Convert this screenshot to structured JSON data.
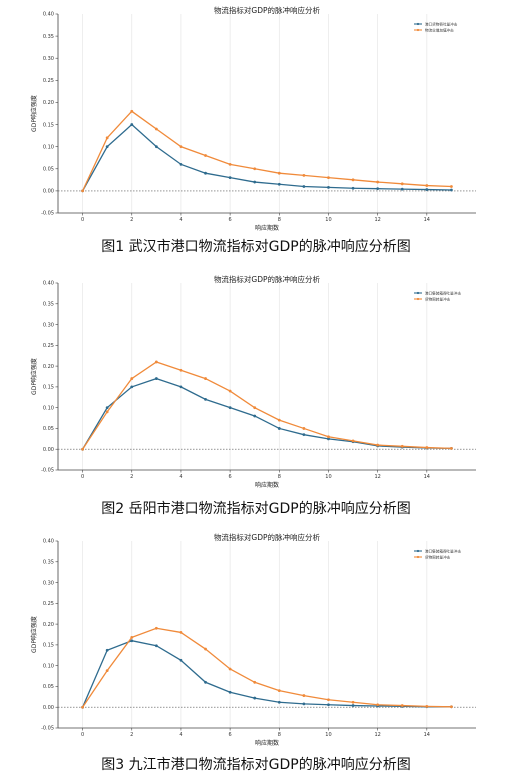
{
  "colors": {
    "s1": "#2e6b8e",
    "s2": "#f08a3a",
    "grid": "#e6e6e6",
    "axis": "#444444",
    "zero": "#555555"
  },
  "chart_data": [
    {
      "type": "line",
      "title": "物流指标对GDP的脉冲响应分析",
      "caption": "图1  武汉市港口物流指标对GDP的脉冲响应分析图",
      "xlabel": "响应期数",
      "ylabel": "GDP响应强度",
      "xlim": [
        -1,
        16
      ],
      "ylim": [
        -0.05,
        0.4
      ],
      "xticks": [
        0,
        2,
        4,
        6,
        8,
        10,
        12,
        14
      ],
      "yticks": [
        -0.05,
        0.0,
        0.05,
        0.1,
        0.15,
        0.2,
        0.25,
        0.3,
        0.35,
        0.4
      ],
      "legend_position": "top-right",
      "grid": true,
      "x": [
        0,
        1,
        2,
        3,
        4,
        5,
        6,
        7,
        8,
        9,
        10,
        11,
        12,
        13,
        14,
        15
      ],
      "series": [
        {
          "name": "港口货物吞吐量冲击",
          "values": [
            0.0,
            0.1,
            0.15,
            0.1,
            0.06,
            0.04,
            0.03,
            0.02,
            0.015,
            0.01,
            0.008,
            0.006,
            0.005,
            0.004,
            0.003,
            0.002
          ]
        },
        {
          "name": "物流业增加值冲击",
          "values": [
            0.0,
            0.12,
            0.18,
            0.14,
            0.1,
            0.08,
            0.06,
            0.05,
            0.04,
            0.035,
            0.03,
            0.025,
            0.02,
            0.016,
            0.012,
            0.01
          ]
        }
      ]
    },
    {
      "type": "line",
      "title": "物流指标对GDP的脉冲响应分析",
      "caption": "图2  岳阳市港口物流指标对GDP的脉冲响应分析图",
      "xlabel": "响应期数",
      "ylabel": "GDP响应强度",
      "xlim": [
        -1,
        16
      ],
      "ylim": [
        -0.05,
        0.4
      ],
      "xticks": [
        0,
        2,
        4,
        6,
        8,
        10,
        12,
        14
      ],
      "yticks": [
        -0.05,
        0.0,
        0.05,
        0.1,
        0.15,
        0.2,
        0.25,
        0.3,
        0.35,
        0.4
      ],
      "legend_position": "top-right",
      "grid": true,
      "x": [
        0,
        1,
        2,
        3,
        4,
        5,
        6,
        7,
        8,
        9,
        10,
        11,
        12,
        13,
        14,
        15
      ],
      "series": [
        {
          "name": "港口集装箱吞吐量冲击",
          "values": [
            0.0,
            0.1,
            0.15,
            0.17,
            0.15,
            0.12,
            0.1,
            0.08,
            0.05,
            0.035,
            0.025,
            0.018,
            0.008,
            0.005,
            0.003,
            0.002
          ]
        },
        {
          "name": "货物周转量冲击",
          "values": [
            0.0,
            0.09,
            0.17,
            0.21,
            0.19,
            0.17,
            0.14,
            0.1,
            0.07,
            0.05,
            0.03,
            0.02,
            0.01,
            0.007,
            0.004,
            0.002
          ]
        }
      ]
    },
    {
      "type": "line",
      "title": "物流指标对GDP的脉冲响应分析",
      "caption": "图3  九江市港口物流指标对GDP的脉冲响应分析图",
      "xlabel": "响应期数",
      "ylabel": "GDP响应强度",
      "xlim": [
        -1,
        16
      ],
      "ylim": [
        -0.05,
        0.4
      ],
      "xticks": [
        0,
        2,
        4,
        6,
        8,
        10,
        12,
        14
      ],
      "yticks": [
        -0.05,
        0.0,
        0.05,
        0.1,
        0.15,
        0.2,
        0.25,
        0.3,
        0.35,
        0.4
      ],
      "legend_position": "top-right",
      "grid": true,
      "x": [
        0,
        1,
        2,
        3,
        4,
        5,
        6,
        7,
        8,
        9,
        10,
        11,
        12,
        13,
        14,
        15
      ],
      "series": [
        {
          "name": "港口集装箱吞吐量冲击",
          "values": [
            0.0,
            0.137,
            0.16,
            0.148,
            0.113,
            0.06,
            0.036,
            0.022,
            0.012,
            0.008,
            0.006,
            0.004,
            0.003,
            0.002,
            0.001,
            0.001
          ]
        },
        {
          "name": "货物周转量冲击",
          "values": [
            0.0,
            0.088,
            0.168,
            0.19,
            0.18,
            0.14,
            0.092,
            0.06,
            0.04,
            0.028,
            0.018,
            0.012,
            0.006,
            0.004,
            0.002,
            0.001
          ]
        }
      ]
    }
  ]
}
